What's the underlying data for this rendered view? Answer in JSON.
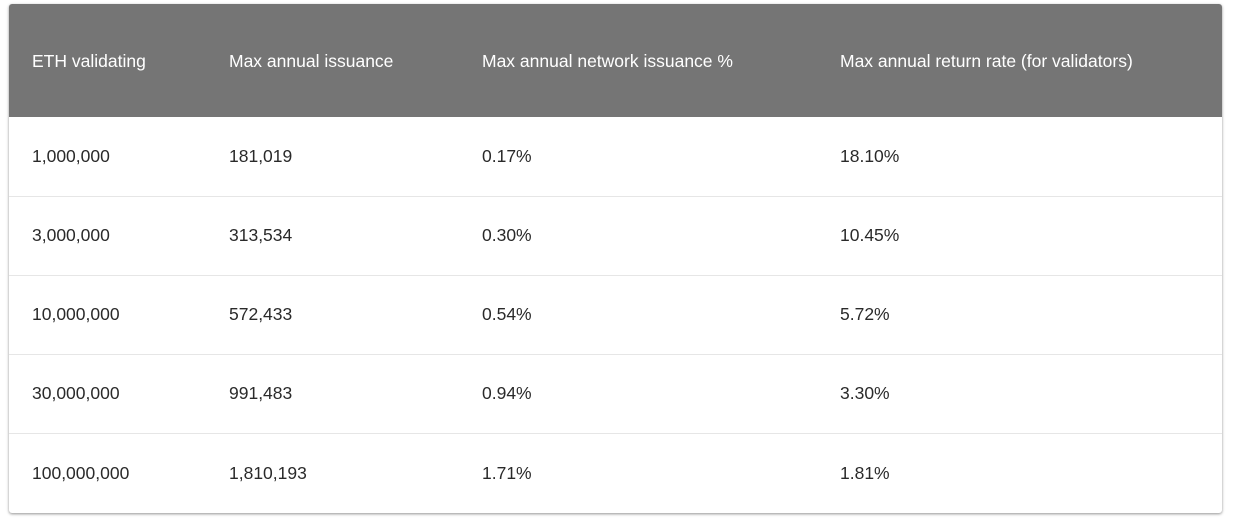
{
  "table": {
    "headers": [
      "ETH validating",
      "Max annual issuance",
      "Max annual network issuance %",
      "Max annual return rate (for validators)"
    ],
    "rows": [
      [
        "1,000,000",
        "181,019",
        "0.17%",
        "18.10%"
      ],
      [
        "3,000,000",
        "313,534",
        "0.30%",
        "10.45%"
      ],
      [
        "10,000,000",
        "572,433",
        "0.54%",
        "5.72%"
      ],
      [
        "30,000,000",
        "991,483",
        "0.94%",
        "3.30%"
      ],
      [
        "100,000,000",
        "1,810,193",
        "1.71%",
        "1.81%"
      ]
    ]
  },
  "colors": {
    "header_background": "#757575",
    "header_text": "#ffffff",
    "body_text": "#2a2a2a",
    "row_divider": "#e6e6e6"
  }
}
